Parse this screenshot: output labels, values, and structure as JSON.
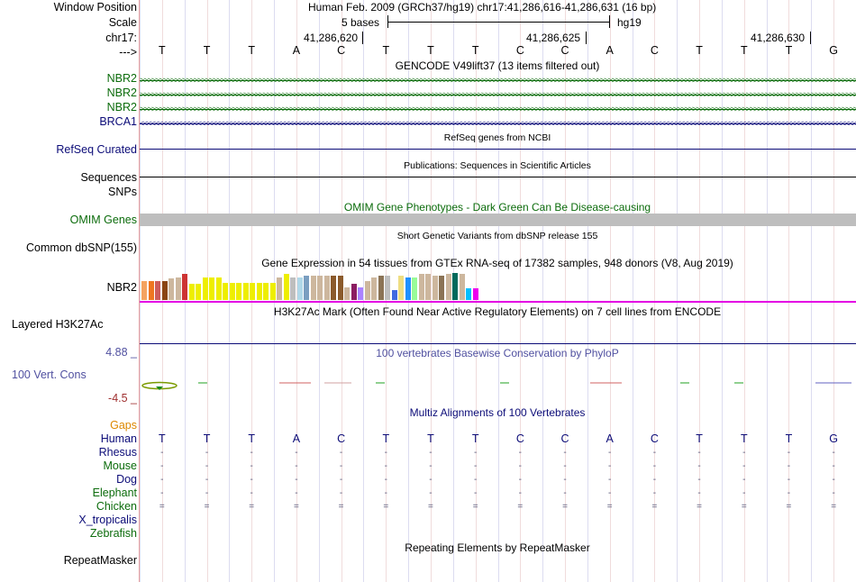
{
  "colors": {
    "gencode_green": "#0c6c0c",
    "brca_blue": "#0c0c78",
    "gap_orange": "#dd8800",
    "cons_blue": "#5050a0",
    "cons_neg": "#a03030",
    "omim_gray": "#bebebe",
    "magenta": "#e400e4"
  },
  "header": {
    "window_position_label": "Window Position",
    "position_text": "Human Feb. 2009 (GRCh37/hg19)   chr17:41,286,616-41,286,631 (16 bp)",
    "scale_label": "Scale",
    "scale_text": "5 bases",
    "scale_assembly": "hg19",
    "chrom_label": "chr17:",
    "coord_ticks": [
      "41,286,620",
      "41,286,625",
      "41,286,630"
    ],
    "strand_label": "--->"
  },
  "bases": [
    "T",
    "T",
    "T",
    "A",
    "C",
    "T",
    "T",
    "T",
    "C",
    "C",
    "A",
    "C",
    "T",
    "T",
    "T",
    "G"
  ],
  "tracks": {
    "gencode": {
      "title": "GENCODE V49lift37 (13 items filtered out)",
      "genes": [
        {
          "name": "NBR2",
          "strand": "+"
        },
        {
          "name": "NBR2",
          "strand": "+"
        },
        {
          "name": "NBR2",
          "strand": "+"
        },
        {
          "name": "BRCA1",
          "strand": "-"
        }
      ]
    },
    "refseq": {
      "title": "RefSeq genes from NCBI",
      "label": "RefSeq Curated"
    },
    "publications": {
      "title": "Publications: Sequences in Scientific Articles",
      "label1": "Sequences",
      "label2": "SNPs"
    },
    "omim": {
      "title": "OMIM Gene Phenotypes - Dark Green Can Be Disease-causing",
      "label": "OMIM Genes"
    },
    "dbsnp": {
      "title": "Short Genetic Variants from dbSNP release 155",
      "label": "Common dbSNP(155)"
    },
    "gtex": {
      "title": "Gene Expression in 54 tissues from GTEx RNA-seq of 17382 samples, 948 donors (V8, Aug 2019)",
      "label": "NBR2",
      "bar_heights": [
        0.71,
        0.71,
        0.71,
        0.71,
        0.79,
        0.82,
        0.96,
        0.6,
        0.6,
        0.82,
        0.82,
        0.82,
        0.64,
        0.64,
        0.64,
        0.64,
        0.64,
        0.64,
        0.64,
        0.64,
        0.82,
        0.96,
        0.82,
        0.82,
        0.89,
        0.89,
        0.89,
        0.89,
        0.89,
        0.89,
        0.46,
        0.61,
        0.46,
        0.71,
        0.82,
        0.89,
        0.89,
        0.36,
        0.89,
        0.82,
        0.82,
        0.96,
        0.96,
        0.89,
        0.89,
        0.96,
        1.0,
        0.96,
        0.43,
        0.43
      ],
      "bar_colors": [
        "#f4a460",
        "#ee7621",
        "#cd5c5c",
        "#8b4513",
        "#cdb79e",
        "#cdb79e",
        "#cd3333",
        "#eeee00",
        "#eeee00",
        "#eeee00",
        "#eeee00",
        "#eeee00",
        "#eeee00",
        "#eeee00",
        "#eeee00",
        "#eeee00",
        "#eeee00",
        "#eeee00",
        "#eeee00",
        "#eeee00",
        "#cdb79e",
        "#eeee00",
        "#bebebe",
        "#b0d8e8",
        "#7a9ec0",
        "#cdb79e",
        "#cdb79e",
        "#cdb79e",
        "#8b5a2b",
        "#8b5a2b",
        "#cdb79e",
        "#8b1c62",
        "#ab82ff",
        "#cdb79e",
        "#cdb79e",
        "#8b7355",
        "#bebebe",
        "#4169e1",
        "#eedd82",
        "#1e90ff",
        "#98fb98",
        "#cdb79e",
        "#cdb79e",
        "#cdb79e",
        "#8b7355",
        "#cdb79e",
        "#00695c",
        "#cdb79e",
        "#00bfff",
        "#ee00ee"
      ]
    },
    "h3k27ac": {
      "title": "H3K27Ac Mark (Often Found Near Active Regulatory Elements) on 7 cell lines from ENCODE",
      "label": "Layered H3K27Ac"
    },
    "conservation": {
      "title": "100 vertebrates Basewise Conservation by PhyloP",
      "label": "100 Vert. Cons",
      "max": "4.88 _",
      "min": "-4.5 _"
    },
    "multiz": {
      "title": "Multiz Alignments of 100 Vertebrates",
      "gaps_label": "Gaps",
      "species": [
        {
          "name": "Human",
          "symbol": ""
        },
        {
          "name": "Rhesus",
          "symbol": "-"
        },
        {
          "name": "Mouse",
          "symbol": "-"
        },
        {
          "name": "Dog",
          "symbol": "-"
        },
        {
          "name": "Elephant",
          "symbol": "-"
        },
        {
          "name": "Chicken",
          "symbol": "="
        },
        {
          "name": "X_tropicalis",
          "symbol": ""
        },
        {
          "name": "Zebrafish",
          "symbol": ""
        }
      ]
    },
    "repeatmasker": {
      "title": "Repeating Elements by RepeatMasker",
      "label": "RepeatMasker"
    }
  }
}
